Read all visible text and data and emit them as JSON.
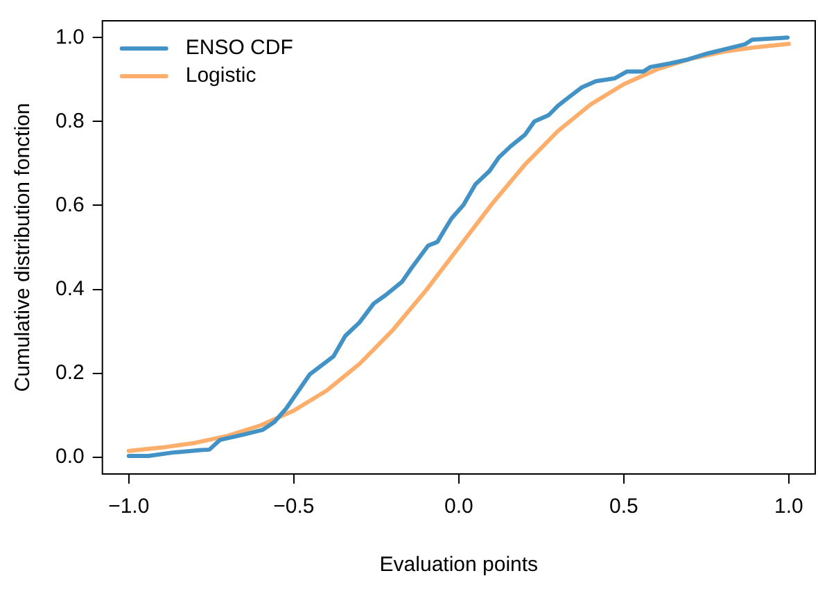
{
  "chart_data": {
    "type": "line",
    "xlabel": "Evaluation points",
    "ylabel": "Cumulative distribution fonction",
    "xlim": [
      -1.08,
      1.08
    ],
    "ylim": [
      -0.04,
      1.04
    ],
    "xticks": [
      {
        "value": -1,
        "label": "−1.0"
      },
      {
        "value": -0.5,
        "label": "−0.5"
      },
      {
        "value": 0,
        "label": "0.0"
      },
      {
        "value": 0.5,
        "label": "0.5"
      },
      {
        "value": 1,
        "label": "1.0"
      }
    ],
    "yticks": [
      {
        "value": 0,
        "label": "0.0"
      },
      {
        "value": 0.2,
        "label": "0.2"
      },
      {
        "value": 0.4,
        "label": "0.4"
      },
      {
        "value": 0.6,
        "label": "0.6"
      },
      {
        "value": 0.8,
        "label": "0.8"
      },
      {
        "value": 1,
        "label": "1.0"
      }
    ],
    "grid": false,
    "legend": "top left",
    "marker": "none",
    "line_style": "solid",
    "series": [
      {
        "name": "ENSO CDF",
        "color": "#4292c6",
        "x": [
          -1.0,
          -0.94,
          -0.868,
          -0.782,
          -0.756,
          -0.724,
          -0.652,
          -0.595,
          -0.559,
          -0.523,
          -0.452,
          -0.38,
          -0.344,
          -0.301,
          -0.258,
          -0.222,
          -0.172,
          -0.144,
          -0.093,
          -0.065,
          -0.043,
          -0.022,
          0.014,
          0.05,
          0.093,
          0.122,
          0.157,
          0.2,
          0.229,
          0.272,
          0.301,
          0.337,
          0.372,
          0.415,
          0.473,
          0.509,
          0.559,
          0.581,
          0.638,
          0.695,
          0.753,
          0.81,
          0.867,
          0.889,
          0.953,
          0.996
        ],
        "values": [
          0.003,
          0.003,
          0.011,
          0.017,
          0.018,
          0.041,
          0.054,
          0.065,
          0.084,
          0.116,
          0.197,
          0.24,
          0.289,
          0.321,
          0.366,
          0.386,
          0.418,
          0.45,
          0.504,
          0.513,
          0.542,
          0.569,
          0.601,
          0.65,
          0.682,
          0.715,
          0.741,
          0.768,
          0.8,
          0.815,
          0.838,
          0.86,
          0.881,
          0.896,
          0.903,
          0.919,
          0.919,
          0.93,
          0.938,
          0.948,
          0.962,
          0.973,
          0.984,
          0.995,
          0.998,
          1.0
        ]
      },
      {
        "name": "Logistic",
        "color": "#fdae6b",
        "x": [
          -1.0,
          -0.9,
          -0.8,
          -0.7,
          -0.6,
          -0.5,
          -0.4,
          -0.3,
          -0.2,
          -0.1,
          0.0,
          0.1,
          0.2,
          0.3,
          0.4,
          0.5,
          0.6,
          0.7,
          0.8,
          0.9,
          1.0
        ],
        "values": [
          0.015,
          0.023,
          0.034,
          0.051,
          0.076,
          0.111,
          0.159,
          0.223,
          0.303,
          0.397,
          0.5,
          0.603,
          0.697,
          0.777,
          0.841,
          0.889,
          0.924,
          0.949,
          0.966,
          0.977,
          0.985
        ]
      }
    ]
  }
}
